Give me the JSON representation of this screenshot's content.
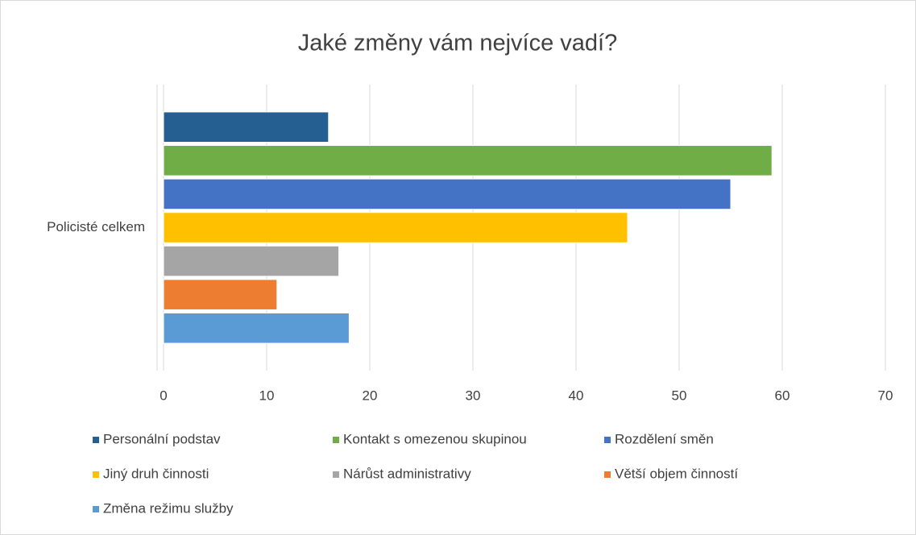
{
  "chart_data": {
    "type": "bar",
    "orientation": "horizontal",
    "title": "Jaké změny vám nejvíce vadí?",
    "categories": [
      "Policisté celkem"
    ],
    "series": [
      {
        "name": "Personální podstav",
        "color": "#255e91",
        "values": [
          16
        ]
      },
      {
        "name": "Kontakt s omezenou skupinou",
        "color": "#70ad47",
        "values": [
          59
        ]
      },
      {
        "name": "Rozdělení směn",
        "color": "#4472c4",
        "values": [
          55
        ]
      },
      {
        "name": "Jiný druh činnosti",
        "color": "#ffc000",
        "values": [
          45
        ]
      },
      {
        "name": "Nárůst administrativy",
        "color": "#a5a5a5",
        "values": [
          17
        ]
      },
      {
        "name": "Větší objem činností",
        "color": "#ed7d31",
        "values": [
          11
        ]
      },
      {
        "name": "Změna režimu služby",
        "color": "#5b9bd5",
        "values": [
          18
        ]
      }
    ],
    "xlim": [
      0,
      70
    ],
    "xticks": [
      0,
      10,
      20,
      30,
      40,
      50,
      60,
      70
    ],
    "grid": true,
    "legend": "bottom"
  }
}
